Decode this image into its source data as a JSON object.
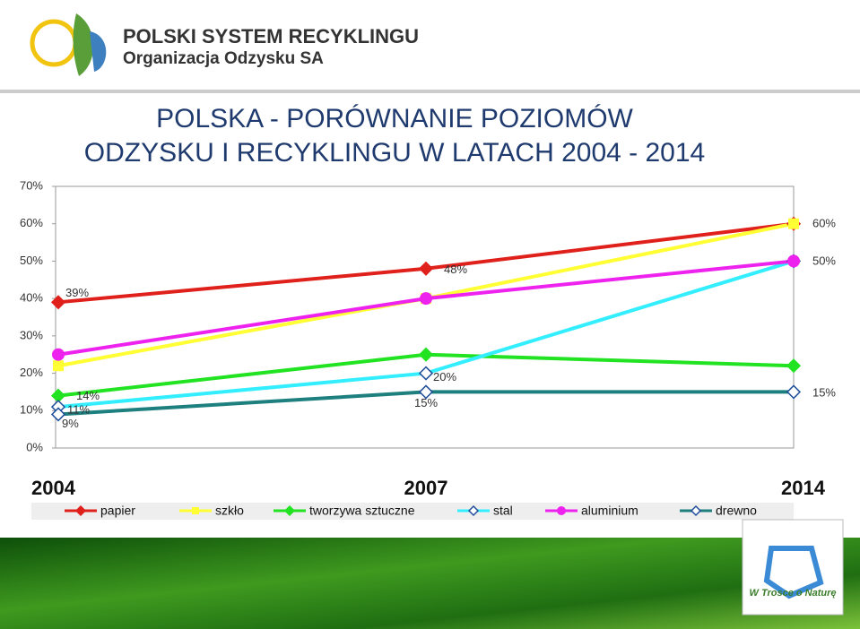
{
  "header": {
    "line1": "POLSKI SYSTEM RECYKLINGU",
    "line2": "Organizacja Odzysku SA"
  },
  "footer_badge": "W Trosce o Naturę",
  "chart_data": {
    "type": "line",
    "title": [
      "POLSKA  - PORÓWNANIE POZIOMÓW",
      "ODZYSKU I RECYKLINGU W LATACH 2004 - 2014"
    ],
    "categories": [
      "2004",
      "2007",
      "2014"
    ],
    "ylim": [
      0,
      70
    ],
    "yticks": [
      {
        "value": 0,
        "label": "0%"
      },
      {
        "value": 10,
        "label": "10%"
      },
      {
        "value": 20,
        "label": "20%"
      },
      {
        "value": 30,
        "label": "30%"
      },
      {
        "value": 40,
        "label": "40%"
      },
      {
        "value": 50,
        "label": "50%"
      },
      {
        "value": 60,
        "label": "60%"
      },
      {
        "value": 70,
        "label": "70%"
      }
    ],
    "legend": "bottom",
    "series": [
      {
        "name": "papier",
        "color": "#e0201b",
        "marker": "diamond",
        "values": [
          39,
          48,
          60
        ],
        "value_labels": [
          "39%",
          "48%",
          "60%"
        ]
      },
      {
        "name": "szkło",
        "color": "#ffff33",
        "marker": "square",
        "values": [
          22,
          40,
          60
        ]
      },
      {
        "name": "tworzywa sztuczne",
        "color": "#22e322",
        "marker": "diamond",
        "values": [
          14,
          25,
          22
        ],
        "value_labels": [
          "14%",
          null,
          null
        ]
      },
      {
        "name": "stal",
        "color": "#33eeff",
        "marker": "hollow-diamond",
        "values": [
          11,
          20,
          50
        ],
        "value_labels": [
          "11%",
          "20%",
          "50%"
        ]
      },
      {
        "name": "aluminium",
        "color": "#ee22ee",
        "marker": "circle",
        "values": [
          25,
          40,
          50
        ]
      },
      {
        "name": "drewno",
        "color": "#1e7f7f",
        "marker": "hollow-diamond",
        "values": [
          9,
          15,
          15
        ],
        "value_labels": [
          "9%",
          "15%",
          "15%"
        ]
      }
    ]
  }
}
